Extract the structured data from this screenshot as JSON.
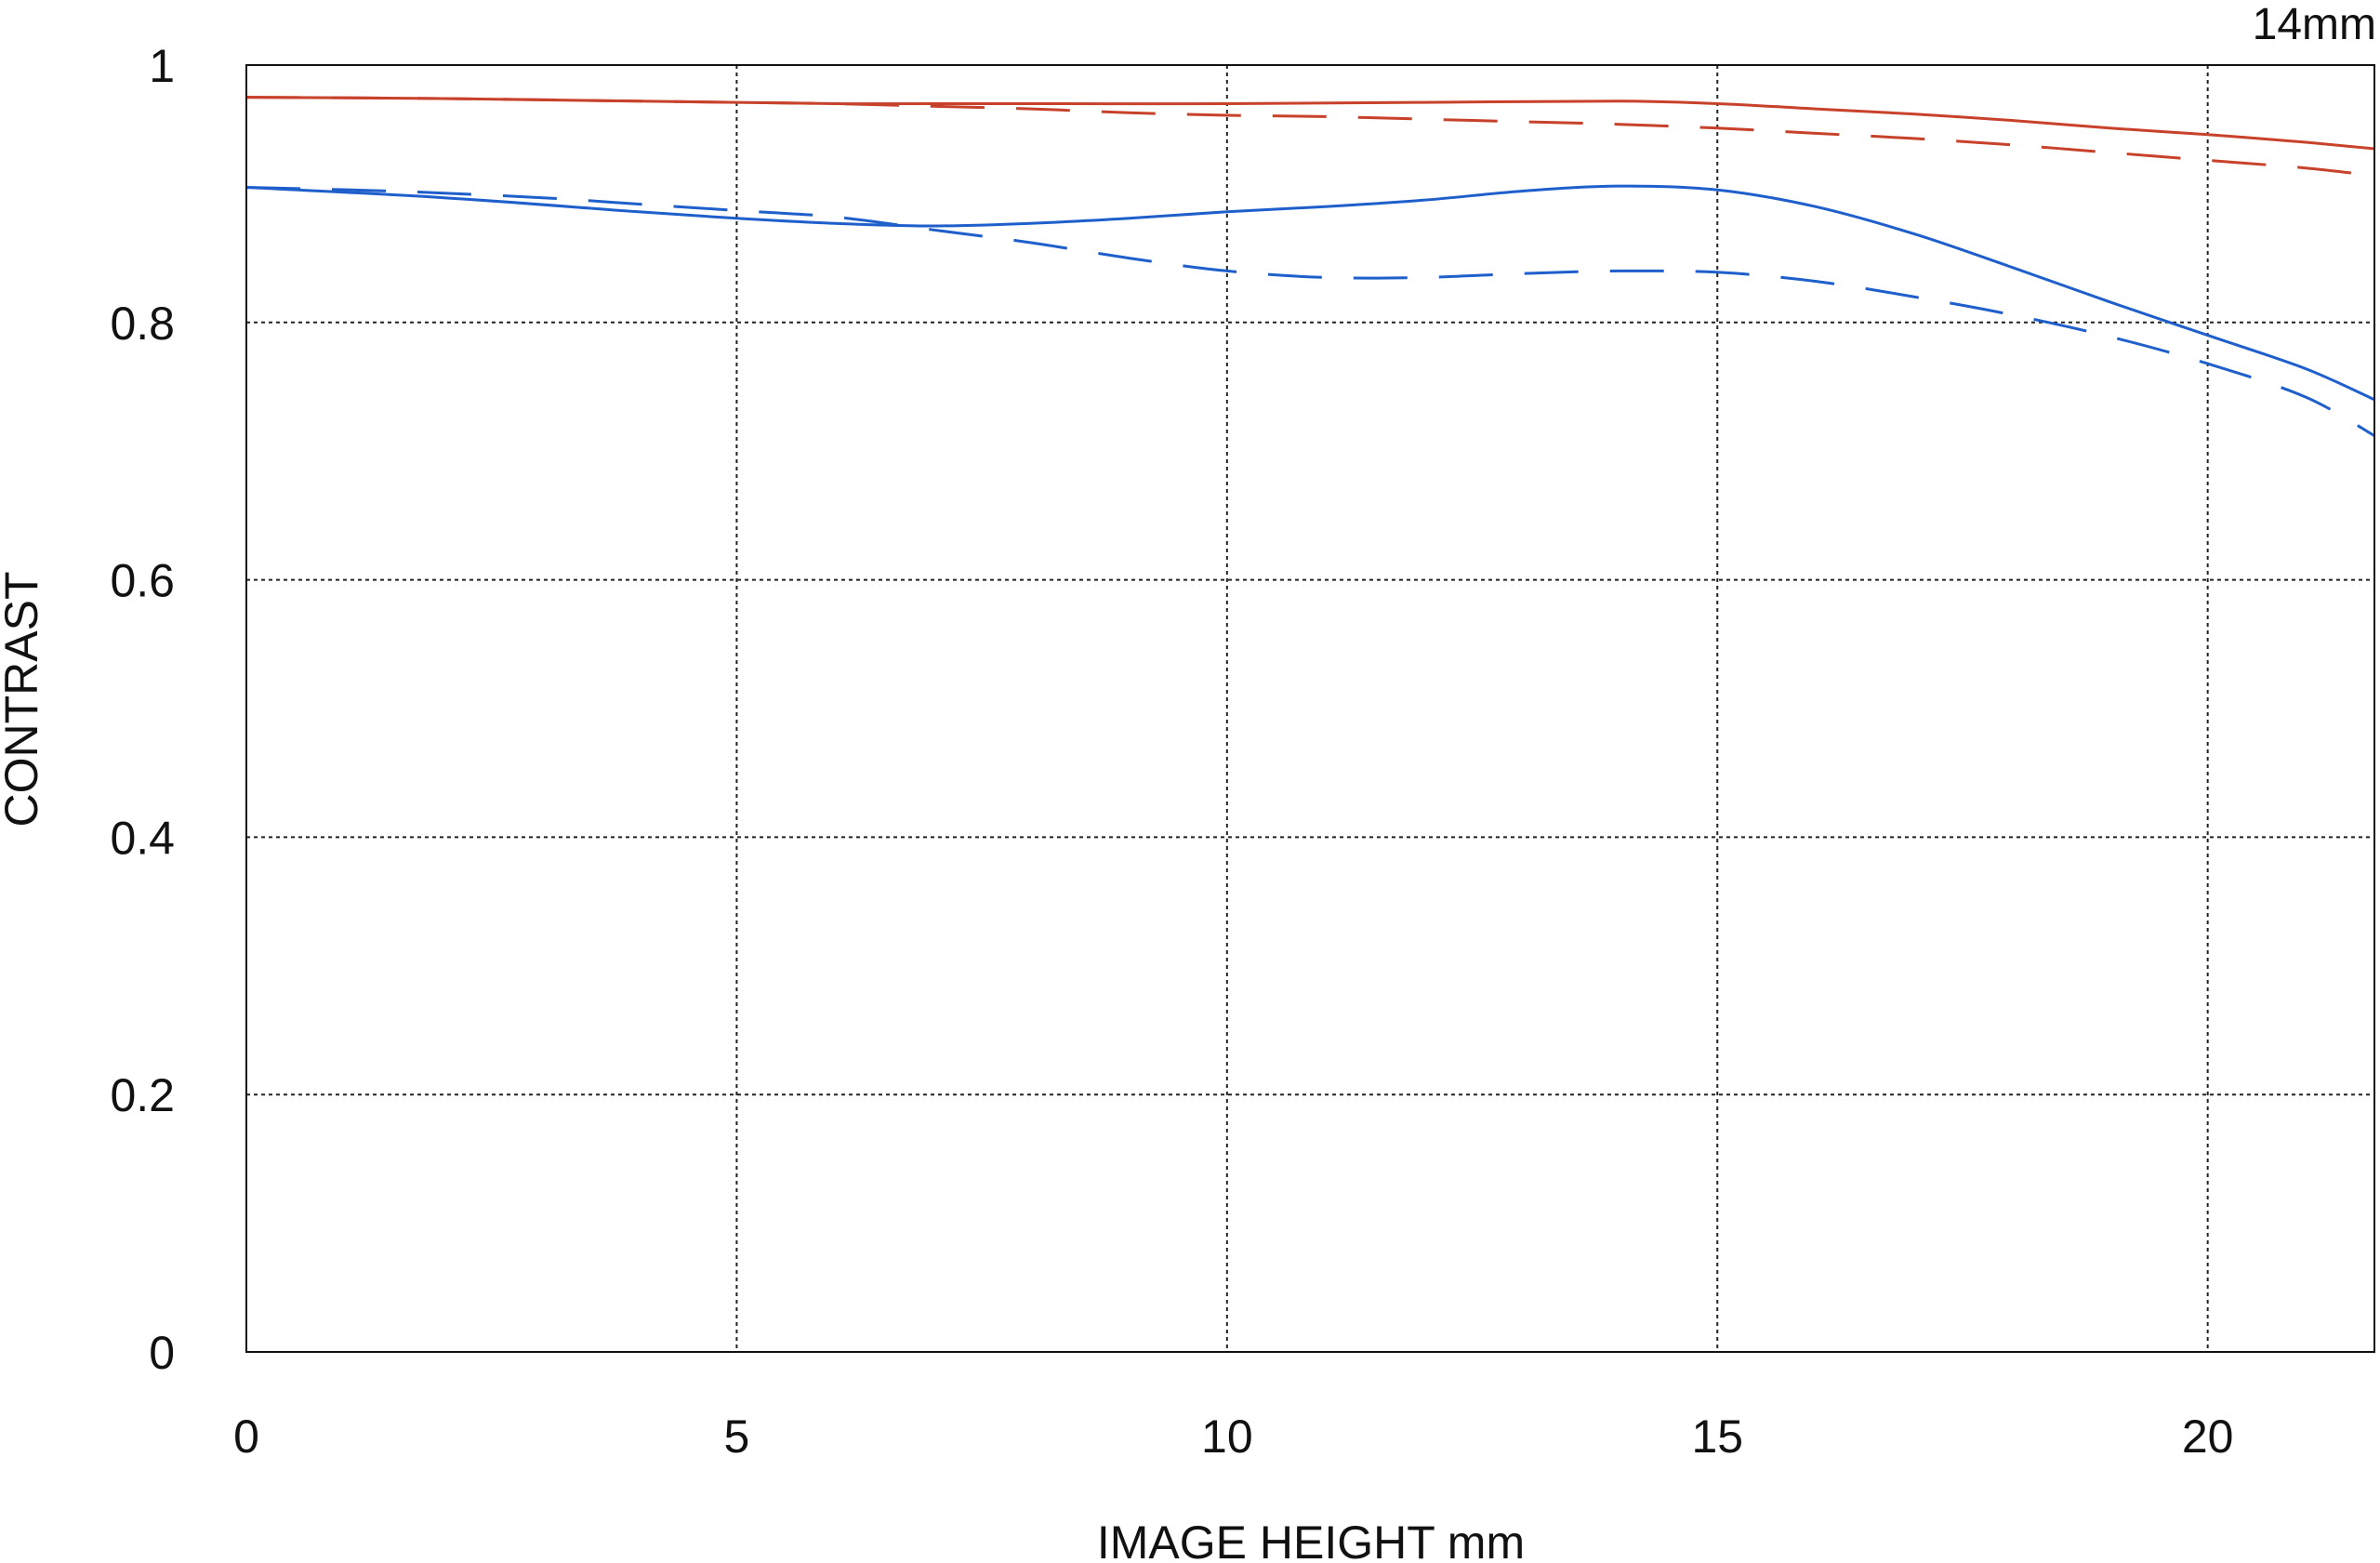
{
  "chart_data": {
    "type": "line",
    "annotation": "14mm",
    "xlabel": "IMAGE HEIGHT  mm",
    "ylabel": "CONTRAST",
    "xlim": [
      0,
      21.7
    ],
    "ylim": [
      0,
      1
    ],
    "x_ticks": [
      0,
      5,
      10,
      15,
      20
    ],
    "x_tick_labels": [
      "0",
      "5",
      "10",
      "15",
      "20"
    ],
    "y_ticks": [
      0,
      0.2,
      0.4,
      0.6,
      0.8,
      1
    ],
    "y_tick_labels": [
      "0",
      "0.2",
      "0.4",
      "0.6",
      "0.8",
      "1"
    ],
    "grid": true,
    "series": [
      {
        "color": "#c8412a",
        "style": "solid",
        "points": [
          [
            0,
            0.975
          ],
          [
            2,
            0.974
          ],
          [
            4,
            0.972
          ],
          [
            6,
            0.97
          ],
          [
            8,
            0.97
          ],
          [
            10,
            0.97
          ],
          [
            12,
            0.971
          ],
          [
            14,
            0.972
          ],
          [
            15,
            0.97
          ],
          [
            16,
            0.966
          ],
          [
            17,
            0.962
          ],
          [
            18,
            0.957
          ],
          [
            19,
            0.951
          ],
          [
            20,
            0.946
          ],
          [
            21,
            0.94
          ],
          [
            21.7,
            0.935
          ]
        ]
      },
      {
        "color": "#c8412a",
        "style": "dashed",
        "points": [
          [
            0,
            0.975
          ],
          [
            2,
            0.974
          ],
          [
            4,
            0.972
          ],
          [
            6,
            0.97
          ],
          [
            7,
            0.968
          ],
          [
            8,
            0.966
          ],
          [
            9,
            0.963
          ],
          [
            10,
            0.961
          ],
          [
            11,
            0.96
          ],
          [
            12,
            0.958
          ],
          [
            13,
            0.956
          ],
          [
            14,
            0.954
          ],
          [
            15,
            0.951
          ],
          [
            16,
            0.947
          ],
          [
            17,
            0.943
          ],
          [
            18,
            0.938
          ],
          [
            19,
            0.932
          ],
          [
            20,
            0.926
          ],
          [
            21,
            0.92
          ],
          [
            21.7,
            0.914
          ]
        ]
      },
      {
        "color": "#1e5fcc",
        "style": "solid",
        "points": [
          [
            0,
            0.905
          ],
          [
            2,
            0.897
          ],
          [
            4,
            0.886
          ],
          [
            5,
            0.881
          ],
          [
            6,
            0.877
          ],
          [
            7,
            0.875
          ],
          [
            8,
            0.877
          ],
          [
            9,
            0.881
          ],
          [
            10,
            0.886
          ],
          [
            11,
            0.89
          ],
          [
            12,
            0.895
          ],
          [
            13,
            0.902
          ],
          [
            14,
            0.906
          ],
          [
            15,
            0.903
          ],
          [
            16,
            0.89
          ],
          [
            17,
            0.869
          ],
          [
            18,
            0.843
          ],
          [
            19,
            0.816
          ],
          [
            20,
            0.79
          ],
          [
            21,
            0.764
          ],
          [
            21.7,
            0.74
          ]
        ]
      },
      {
        "color": "#1e5fcc",
        "style": "dashed",
        "points": [
          [
            0,
            0.905
          ],
          [
            1.5,
            0.902
          ],
          [
            3,
            0.897
          ],
          [
            4,
            0.892
          ],
          [
            5,
            0.887
          ],
          [
            6,
            0.882
          ],
          [
            7,
            0.872
          ],
          [
            8,
            0.862
          ],
          [
            9,
            0.85
          ],
          [
            10,
            0.84
          ],
          [
            11,
            0.835
          ],
          [
            12,
            0.835
          ],
          [
            13,
            0.838
          ],
          [
            14,
            0.84
          ],
          [
            15,
            0.839
          ],
          [
            16,
            0.832
          ],
          [
            17,
            0.82
          ],
          [
            18,
            0.806
          ],
          [
            19,
            0.789
          ],
          [
            20,
            0.768
          ],
          [
            21,
            0.742
          ],
          [
            21.7,
            0.712
          ]
        ]
      }
    ]
  }
}
